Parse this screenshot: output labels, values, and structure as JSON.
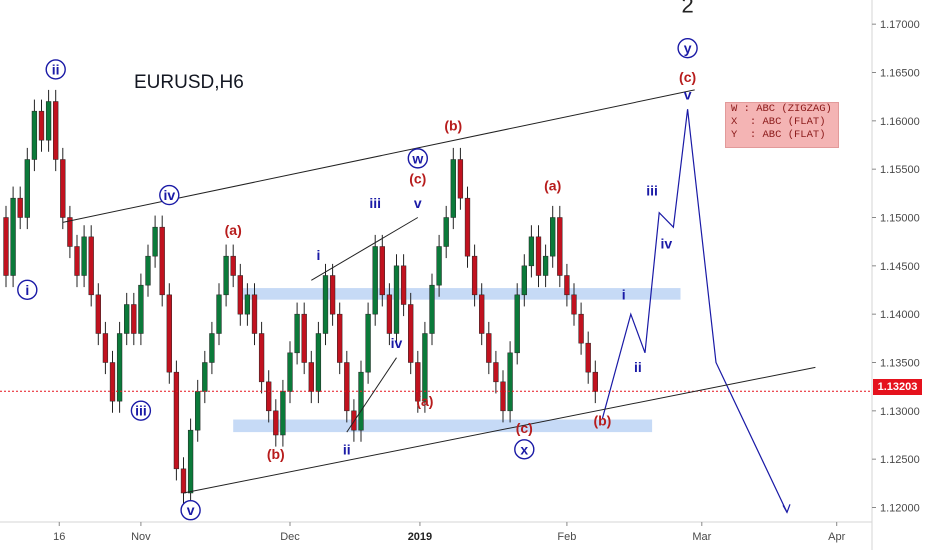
{
  "symbol": "EURUSD,H6",
  "last_price": "1.13203",
  "price_line_value": 1.13203,
  "colors": {
    "bull_candle": "#0b7a3a",
    "bear_candle": "#c1121f",
    "wave_blue": "#1a1aa6",
    "wave_red": "#b71c1c",
    "zone": "#bcd4f5",
    "price_line": "#e5121d",
    "legend_bg": "#f4b4b4"
  },
  "legend": {
    "lines": [
      "W : ABC (ZIGZAG)",
      "X  : ABC (FLAT)",
      "Y  : ABC (FLAT)"
    ]
  },
  "chart_data": {
    "type": "line",
    "title": "EURUSD,H6",
    "xlabel": "",
    "ylabel": "",
    "ylim": [
      1.1185,
      1.1725
    ],
    "x_ticks": [
      {
        "label": "16",
        "bold": false
      },
      {
        "label": "Nov",
        "bold": false
      },
      {
        "label": "Dec",
        "bold": false
      },
      {
        "label": "2019",
        "bold": true
      },
      {
        "label": "Feb",
        "bold": false
      },
      {
        "label": "Mar",
        "bold": false
      },
      {
        "label": "Apr",
        "bold": false
      }
    ],
    "y_ticks": [
      "1.17000",
      "1.16500",
      "1.16000",
      "1.15500",
      "1.15000",
      "1.14500",
      "1.14000",
      "1.13500",
      "1.13000",
      "1.12500",
      "1.12000"
    ],
    "y_tick_values": [
      1.17,
      1.165,
      1.16,
      1.155,
      1.15,
      1.145,
      1.14,
      1.135,
      1.13,
      1.125,
      1.12
    ],
    "series": [
      {
        "type": "candlestick",
        "points": [
          [
            1.15,
            1.144
          ],
          [
            1.144,
            1.152
          ],
          [
            1.152,
            1.15
          ],
          [
            1.15,
            1.156
          ],
          [
            1.156,
            1.161
          ],
          [
            1.161,
            1.158
          ],
          [
            1.158,
            1.162
          ],
          [
            1.162,
            1.156
          ],
          [
            1.156,
            1.15
          ],
          [
            1.15,
            1.147
          ],
          [
            1.147,
            1.144
          ],
          [
            1.144,
            1.148
          ],
          [
            1.148,
            1.142
          ],
          [
            1.142,
            1.138
          ],
          [
            1.138,
            1.135
          ],
          [
            1.135,
            1.131
          ],
          [
            1.131,
            1.138
          ],
          [
            1.138,
            1.141
          ],
          [
            1.141,
            1.138
          ],
          [
            1.138,
            1.143
          ],
          [
            1.143,
            1.146
          ],
          [
            1.146,
            1.149
          ],
          [
            1.149,
            1.142
          ],
          [
            1.142,
            1.134
          ],
          [
            1.134,
            1.124
          ],
          [
            1.124,
            1.1215
          ],
          [
            1.1215,
            1.128
          ],
          [
            1.128,
            1.132
          ],
          [
            1.132,
            1.135
          ],
          [
            1.135,
            1.138
          ],
          [
            1.138,
            1.142
          ],
          [
            1.142,
            1.146
          ],
          [
            1.146,
            1.144
          ],
          [
            1.144,
            1.14
          ],
          [
            1.14,
            1.142
          ],
          [
            1.142,
            1.138
          ],
          [
            1.138,
            1.133
          ],
          [
            1.133,
            1.13
          ],
          [
            1.13,
            1.1275
          ],
          [
            1.1275,
            1.132
          ],
          [
            1.132,
            1.136
          ],
          [
            1.136,
            1.14
          ],
          [
            1.14,
            1.135
          ],
          [
            1.135,
            1.132
          ],
          [
            1.132,
            1.138
          ],
          [
            1.138,
            1.144
          ],
          [
            1.144,
            1.14
          ],
          [
            1.14,
            1.135
          ],
          [
            1.135,
            1.13
          ],
          [
            1.13,
            1.128
          ],
          [
            1.128,
            1.134
          ],
          [
            1.134,
            1.14
          ],
          [
            1.14,
            1.147
          ],
          [
            1.147,
            1.142
          ],
          [
            1.142,
            1.138
          ],
          [
            1.138,
            1.145
          ],
          [
            1.145,
            1.141
          ],
          [
            1.141,
            1.135
          ],
          [
            1.135,
            1.131
          ],
          [
            1.131,
            1.138
          ],
          [
            1.138,
            1.143
          ],
          [
            1.143,
            1.147
          ],
          [
            1.147,
            1.15
          ],
          [
            1.15,
            1.156
          ],
          [
            1.156,
            1.152
          ],
          [
            1.152,
            1.146
          ],
          [
            1.146,
            1.142
          ],
          [
            1.142,
            1.138
          ],
          [
            1.138,
            1.135
          ],
          [
            1.135,
            1.133
          ],
          [
            1.133,
            1.13
          ],
          [
            1.13,
            1.136
          ],
          [
            1.136,
            1.142
          ],
          [
            1.142,
            1.145
          ],
          [
            1.145,
            1.148
          ],
          [
            1.148,
            1.144
          ],
          [
            1.144,
            1.146
          ],
          [
            1.146,
            1.15
          ],
          [
            1.15,
            1.144
          ],
          [
            1.144,
            1.142
          ],
          [
            1.142,
            1.14
          ],
          [
            1.14,
            1.137
          ],
          [
            1.137,
            1.134
          ],
          [
            1.134,
            1.132
          ]
        ]
      },
      {
        "name": "",
        "type": "projection",
        "x_index": [
          84,
          88,
          90,
          92,
          94,
          96,
          100,
          110
        ],
        "y": [
          1.1292,
          1.14,
          1.136,
          1.1505,
          1.149,
          1.1612,
          1.135,
          1.1195
        ]
      },
      {
        "name": "",
        "type": "channel-upper",
        "x_index": [
          8,
          97
        ],
        "y": [
          1.1495,
          1.1632
        ]
      },
      {
        "name": "",
        "type": "channel-lower",
        "x_index": [
          25,
          114
        ],
        "y": [
          1.1215,
          1.1345
        ]
      },
      {
        "name": "",
        "type": "wave-w-upper",
        "x_index": [
          43,
          58
        ],
        "y": [
          1.1435,
          1.15
        ]
      },
      {
        "name": "",
        "type": "wave-w-lower",
        "x_index": [
          48,
          55
        ],
        "y": [
          1.1278,
          1.1355
        ]
      }
    ],
    "zones": [
      {
        "x_index": [
          33,
          95
        ],
        "y": [
          1.1427,
          1.1415
        ]
      },
      {
        "x_index": [
          32,
          91
        ],
        "y": [
          1.1291,
          1.1278
        ]
      }
    ],
    "wave_labels": [
      {
        "text": "ii",
        "style": "circle",
        "x_index": 7,
        "y": 1.1648
      },
      {
        "text": "i",
        "style": "circle",
        "x_index": 3,
        "y": 1.142
      },
      {
        "text": "iii",
        "style": "circle",
        "x_index": 19,
        "y": 1.1295
      },
      {
        "text": "iv",
        "style": "circle",
        "x_index": 23,
        "y": 1.1518
      },
      {
        "text": "v",
        "style": "circle",
        "x_index": 26,
        "y": 1.1192
      },
      {
        "text": "(a)",
        "style": "red",
        "x_index": 32,
        "y": 1.1482
      },
      {
        "text": "(b)",
        "style": "red",
        "x_index": 38,
        "y": 1.125
      },
      {
        "text": "i",
        "style": "blue",
        "x_index": 44,
        "y": 1.1456
      },
      {
        "text": "ii",
        "style": "blue",
        "x_index": 48,
        "y": 1.1255
      },
      {
        "text": "iii",
        "style": "blue",
        "x_index": 52,
        "y": 1.151
      },
      {
        "text": "iv",
        "style": "blue",
        "x_index": 55,
        "y": 1.1365
      },
      {
        "text": "v",
        "style": "blue",
        "x_index": 58,
        "y": 1.151
      },
      {
        "text": "(c)",
        "style": "red",
        "x_index": 58,
        "y": 1.1535
      },
      {
        "text": "w",
        "style": "circle",
        "x_index": 58,
        "y": 1.1556
      },
      {
        "text": "(a)",
        "style": "red",
        "x_index": 59,
        "y": 1.1305
      },
      {
        "text": "(b)",
        "style": "red",
        "x_index": 63,
        "y": 1.159
      },
      {
        "text": "(c)",
        "style": "red",
        "x_index": 73,
        "y": 1.1277
      },
      {
        "text": "x",
        "style": "circle",
        "x_index": 73,
        "y": 1.1255
      },
      {
        "text": "(a)",
        "style": "red",
        "x_index": 77,
        "y": 1.1528
      },
      {
        "text": "(b)",
        "style": "red",
        "x_index": 84,
        "y": 1.1285
      },
      {
        "text": "i",
        "style": "blue",
        "x_index": 87,
        "y": 1.1415
      },
      {
        "text": "ii",
        "style": "blue",
        "x_index": 89,
        "y": 1.134
      },
      {
        "text": "iii",
        "style": "blue",
        "x_index": 91,
        "y": 1.1523
      },
      {
        "text": "iv",
        "style": "blue",
        "x_index": 93,
        "y": 1.1468
      },
      {
        "text": "v",
        "style": "blue",
        "x_index": 96,
        "y": 1.1622
      },
      {
        "text": "(c)",
        "style": "red",
        "x_index": 96,
        "y": 1.164
      },
      {
        "text": "y",
        "style": "circle",
        "x_index": 96,
        "y": 1.167
      },
      {
        "text": "2",
        "style": "dark",
        "x_index": 96,
        "y": 1.1712
      }
    ],
    "grid": false,
    "legend_position": "top-right"
  }
}
